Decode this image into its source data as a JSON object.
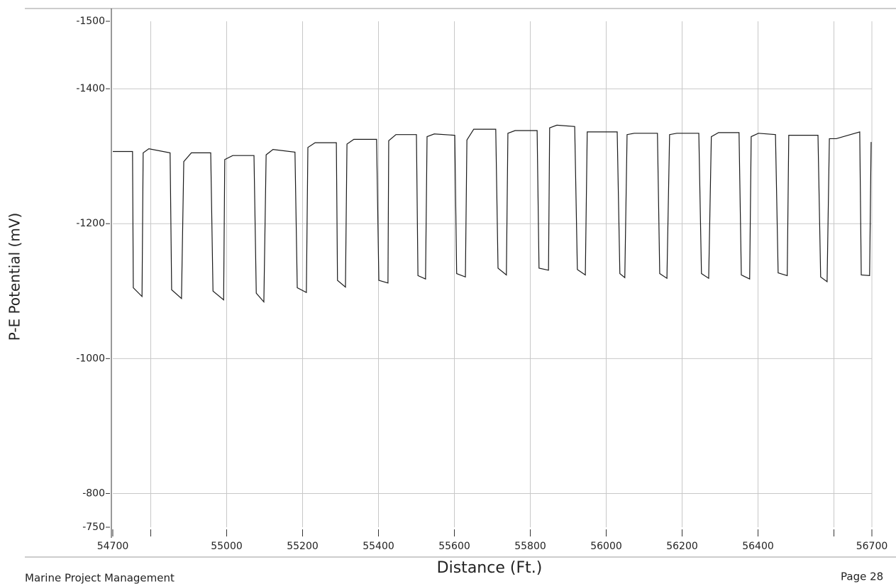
{
  "chart_data": {
    "type": "line",
    "y_label": "P-E Potential (mV)",
    "x_label": "Distance (Ft.)",
    "footer_left": "Marine Project Management",
    "footer_right": "Page 28",
    "color": "#1a1a1a",
    "grid": true,
    "xlim": [
      54700,
      56700
    ],
    "ylim": [
      -750,
      -1500
    ],
    "xticks": [
      54700,
      {
        "value": 54800,
        "label": null
      },
      55000,
      55200,
      55400,
      55600,
      55800,
      56000,
      56200,
      56400,
      {
        "value": 56600,
        "label": null
      },
      56700
    ],
    "yticks": [
      -1500,
      -1400,
      -1200,
      -1000,
      -800,
      -750
    ],
    "x": [
      54700,
      54752,
      54754,
      54777,
      54780,
      54795,
      54851,
      54855,
      54881,
      54887,
      54907,
      54958,
      54964,
      54992,
      54995,
      55016,
      55072,
      55078,
      55098,
      55104,
      55122,
      55180,
      55186,
      55210,
      55214,
      55233,
      55289,
      55292,
      55313,
      55317,
      55335,
      55395,
      55401,
      55425,
      55427,
      55446,
      55500,
      55504,
      55524,
      55528,
      55547,
      55601,
      55606,
      55629,
      55633,
      55651,
      55709,
      55715,
      55737,
      55741,
      55760,
      55818,
      55823,
      55848,
      55851,
      55870,
      55917,
      55924,
      55945,
      55950,
      55969,
      56029,
      56036,
      56049,
      56055,
      56074,
      56135,
      56141,
      56160,
      56167,
      56186,
      56244,
      56251,
      56270,
      56277,
      56296,
      56350,
      56356,
      56378,
      56382,
      56401,
      56446,
      56453,
      56477,
      56481,
      56500,
      56558,
      56565,
      56582,
      56588,
      56606,
      56668,
      56672,
      56694,
      56698
    ],
    "values": [
      -1307,
      -1307,
      -1105,
      -1092,
      -1305,
      -1311,
      -1305,
      -1102,
      -1089,
      -1292,
      -1305,
      -1305,
      -1100,
      -1087,
      -1295,
      -1301,
      -1301,
      -1097,
      -1084,
      -1302,
      -1310,
      -1306,
      -1105,
      -1098,
      -1313,
      -1320,
      -1320,
      -1116,
      -1106,
      -1318,
      -1325,
      -1325,
      -1116,
      -1112,
      -1323,
      -1332,
      -1332,
      -1123,
      -1118,
      -1329,
      -1333,
      -1331,
      -1126,
      -1121,
      -1324,
      -1340,
      -1340,
      -1134,
      -1124,
      -1334,
      -1338,
      -1338,
      -1134,
      -1131,
      -1342,
      -1346,
      -1344,
      -1132,
      -1124,
      -1336,
      -1336,
      -1336,
      -1126,
      -1120,
      -1332,
      -1334,
      -1334,
      -1126,
      -1119,
      -1332,
      -1334,
      -1334,
      -1126,
      -1119,
      -1329,
      -1335,
      -1335,
      -1124,
      -1118,
      -1329,
      -1334,
      -1332,
      -1127,
      -1123,
      -1331,
      -1331,
      -1331,
      -1121,
      -1114,
      -1326,
      -1326,
      -1336,
      -1124,
      -1123,
      -1321
    ]
  }
}
